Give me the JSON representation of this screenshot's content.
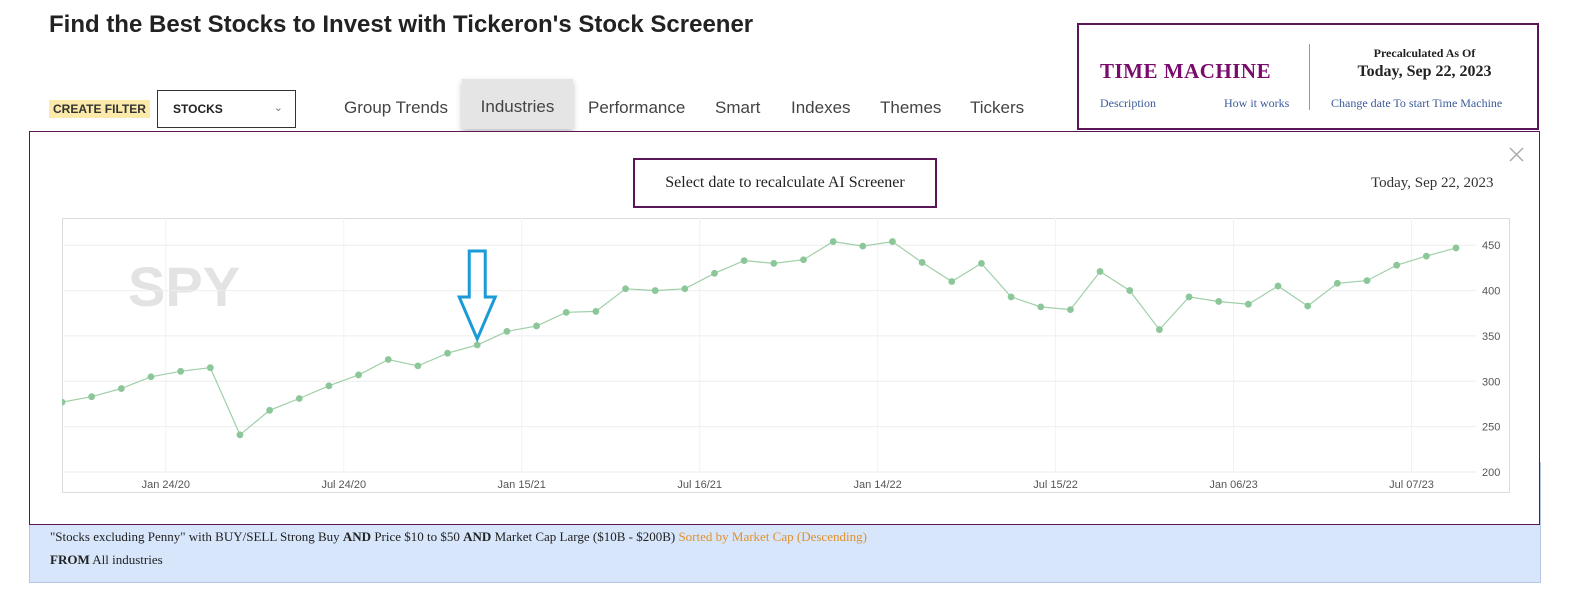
{
  "header": {
    "title": "Find the Best Stocks to Invest with Tickeron's Stock Screener"
  },
  "filter_bar": {
    "create_filter_label": "CREATE FILTER",
    "stocks_select_value": "STOCKS",
    "tabs": [
      {
        "label": "Group Trends",
        "active": false
      },
      {
        "label": "Industries",
        "active": true
      },
      {
        "label": "Performance",
        "active": false
      },
      {
        "label": "Smart",
        "active": false
      },
      {
        "label": "Indexes",
        "active": false
      },
      {
        "label": "Themes",
        "active": false
      },
      {
        "label": "Tickers",
        "active": false
      }
    ]
  },
  "time_machine": {
    "title": "TIME MACHINE",
    "description_link": "Description",
    "how_it_works_link": "How it works",
    "precalc_label": "Precalculated As Of",
    "precalc_date": "Today, Sep 22, 2023",
    "change_date_link": "Change date To start Time Machine"
  },
  "modal": {
    "heading": "Select date to recalculate AI Screener",
    "current_date": "Today, Sep 22, 2023"
  },
  "filter_summary": {
    "line1_prefix": "\"Stocks excluding Penny\" with BUY/SELL Strong Buy ",
    "and1": "AND",
    "line1_mid": " Price $10 to $50 ",
    "and2": "AND",
    "line1_suffix": " Market Cap Large ($10B - $200B) ",
    "sorted_by": "Sorted by Market Cap (Descending)",
    "from_label": "FROM",
    "from_value": " All industries"
  },
  "colors": {
    "brand_purple": "#5b1657",
    "time_machine_title": "#7a0a6c",
    "line_color": "#9fcfa8",
    "point_color": "#8cc79a",
    "arrow_color": "#1a9ad6",
    "sorted_by_color": "#e0912b",
    "summary_bg": "#d7e6fb"
  },
  "icons": {
    "close": "close-icon",
    "dropdown": "chevron-down-icon",
    "marker": "down-arrow-icon"
  },
  "chart_data": {
    "type": "line",
    "watermark": "SPY",
    "ylim": [
      200,
      480
    ],
    "yticks": [
      200,
      250,
      300,
      350,
      400,
      450
    ],
    "x_tick_labels": [
      "Jan 24/20",
      "Jul 24/20",
      "Jan 15/21",
      "Jul 16/21",
      "Jan 14/22",
      "Jul 15/22",
      "Jan 06/23",
      "Jul 07/23"
    ],
    "x_tick_index": [
      3.5,
      9.5,
      15.5,
      21.5,
      27.5,
      33.5,
      39.5,
      45.5
    ],
    "grid": true,
    "series": [
      {
        "values": [
          277,
          283,
          292,
          305,
          311,
          315,
          241,
          268,
          281,
          295,
          307,
          324,
          317,
          331,
          340,
          355,
          361,
          376,
          377,
          402,
          400,
          402,
          419,
          433,
          430,
          434,
          454,
          449,
          454,
          431,
          410,
          430,
          393,
          382,
          379,
          421,
          400,
          357,
          393,
          388,
          385,
          405,
          383,
          408,
          411,
          428,
          438,
          447
        ]
      }
    ],
    "marker_index": 14
  }
}
